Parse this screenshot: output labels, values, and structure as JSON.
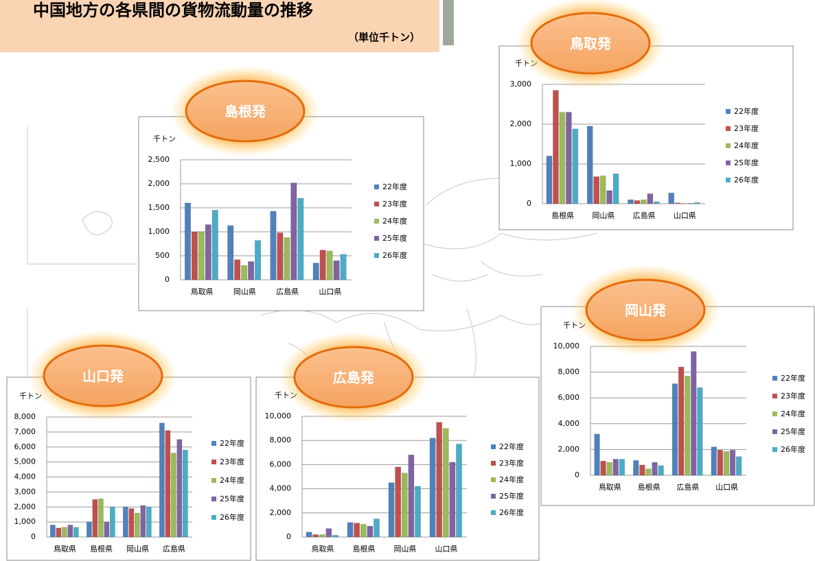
{
  "header": {
    "title": "中国地方の各県間の貨物流動量の推移",
    "unit": "（単位千トン）"
  },
  "chart_data": [
    {
      "type": "bar",
      "title": "島根発",
      "y_label": "千トン",
      "grid": true,
      "categories": [
        "鳥取県",
        "岡山県",
        "広島県",
        "山口県"
      ],
      "ylim": [
        0,
        2500
      ],
      "yticks": [
        0,
        500,
        {
          "value": 1000,
          "label": "1,000"
        },
        {
          "value": 1500,
          "label": "1,500"
        },
        {
          "value": 2000,
          "label": "2,000"
        },
        {
          "value": 2500,
          "label": "2,500"
        }
      ],
      "series": [
        {
          "name": "22年度",
          "color": "#4f81bd",
          "values": [
            1600,
            1130,
            1430,
            350
          ]
        },
        {
          "name": "23年度",
          "color": "#c0504d",
          "values": [
            1000,
            420,
            980,
            620
          ]
        },
        {
          "name": "24年度",
          "color": "#9bbb59",
          "values": [
            1000,
            300,
            880,
            600
          ]
        },
        {
          "name": "25年度",
          "color": "#8064a2",
          "values": [
            1150,
            380,
            2020,
            400
          ]
        },
        {
          "name": "26年度",
          "color": "#4bacc6",
          "values": [
            1450,
            820,
            1700,
            530
          ]
        }
      ]
    },
    {
      "type": "bar",
      "title": "鳥取発",
      "y_label": "千トン",
      "grid": true,
      "categories": [
        "島根県",
        "岡山県",
        "広島県",
        "山口県"
      ],
      "ylim": [
        0,
        3000
      ],
      "yticks": [
        0,
        {
          "value": 1000,
          "label": "1,000"
        },
        {
          "value": 2000,
          "label": "2,000"
        },
        {
          "value": 3000,
          "label": "3,000"
        }
      ],
      "series": [
        {
          "name": "22年度",
          "color": "#4f81bd",
          "values": [
            1200,
            1950,
            100,
            270
          ]
        },
        {
          "name": "23年度",
          "color": "#c0504d",
          "values": [
            2850,
            680,
            80,
            20
          ]
        },
        {
          "name": "24年度",
          "color": "#9bbb59",
          "values": [
            2300,
            700,
            100,
            10
          ]
        },
        {
          "name": "25年度",
          "color": "#8064a2",
          "values": [
            2300,
            330,
            250,
            10
          ]
        },
        {
          "name": "26年度",
          "color": "#4bacc6",
          "values": [
            1880,
            750,
            50,
            30
          ]
        }
      ]
    },
    {
      "type": "bar",
      "title": "岡山発",
      "y_label": "千トン",
      "grid": true,
      "categories": [
        "鳥取県",
        "島根県",
        "広島県",
        "山口県"
      ],
      "ylim": [
        0,
        10000
      ],
      "yticks": [
        0,
        {
          "value": 2000,
          "label": "2,000"
        },
        {
          "value": 4000,
          "label": "4,000"
        },
        {
          "value": 6000,
          "label": "6,000"
        },
        {
          "value": 8000,
          "label": "8,000"
        },
        {
          "value": 10000,
          "label": "10,000"
        }
      ],
      "series": [
        {
          "name": "22年度",
          "color": "#4f81bd",
          "values": [
            3200,
            1150,
            7100,
            2200
          ]
        },
        {
          "name": "23年度",
          "color": "#c0504d",
          "values": [
            1100,
            800,
            8400,
            1950
          ]
        },
        {
          "name": "24年度",
          "color": "#9bbb59",
          "values": [
            1000,
            500,
            7700,
            1850
          ]
        },
        {
          "name": "25年度",
          "color": "#8064a2",
          "values": [
            1250,
            1000,
            9600,
            1950
          ]
        },
        {
          "name": "26年度",
          "color": "#4bacc6",
          "values": [
            1250,
            750,
            6800,
            1450
          ]
        }
      ]
    },
    {
      "type": "bar",
      "title": "山口発",
      "y_label": "千トン",
      "grid": true,
      "categories": [
        "鳥取県",
        "島根県",
        "岡山県",
        "広島県"
      ],
      "ylim": [
        0,
        8000
      ],
      "yticks": [
        0,
        {
          "value": 1000,
          "label": "1,000"
        },
        {
          "value": 2000,
          "label": "2,000"
        },
        {
          "value": 3000,
          "label": "3,000"
        },
        {
          "value": 4000,
          "label": "4,000"
        },
        {
          "value": 5000,
          "label": "5,000"
        },
        {
          "value": 6000,
          "label": "6,000"
        },
        {
          "value": 7000,
          "label": "7,000"
        },
        {
          "value": 8000,
          "label": "8,000"
        }
      ],
      "series": [
        {
          "name": "22年度",
          "color": "#4f81bd",
          "values": [
            800,
            1000,
            2000,
            7600
          ]
        },
        {
          "name": "23年度",
          "color": "#c0504d",
          "values": [
            600,
            2500,
            1900,
            7100
          ]
        },
        {
          "name": "24年度",
          "color": "#9bbb59",
          "values": [
            650,
            2550,
            1600,
            5600
          ]
        },
        {
          "name": "25年度",
          "color": "#8064a2",
          "values": [
            800,
            1000,
            2100,
            6500
          ]
        },
        {
          "name": "26年度",
          "color": "#4bacc6",
          "values": [
            650,
            2000,
            2000,
            5800
          ]
        }
      ]
    },
    {
      "type": "bar",
      "title": "広島発",
      "y_label": "千トン",
      "grid": true,
      "categories": [
        "鳥取県",
        "島根県",
        "岡山県",
        "山口県"
      ],
      "ylim": [
        0,
        10000
      ],
      "yticks": [
        0,
        {
          "value": 2000,
          "label": "2,000"
        },
        {
          "value": 4000,
          "label": "4,000"
        },
        {
          "value": 6000,
          "label": "6,000"
        },
        {
          "value": 8000,
          "label": "8,000"
        },
        {
          "value": 10000,
          "label": "10,000"
        }
      ],
      "series": [
        {
          "name": "22年度",
          "color": "#4f81bd",
          "values": [
            400,
            1200,
            4500,
            8200
          ]
        },
        {
          "name": "23年度",
          "color": "#c0504d",
          "values": [
            200,
            1150,
            5800,
            9500
          ]
        },
        {
          "name": "24年度",
          "color": "#9bbb59",
          "values": [
            200,
            1050,
            5300,
            9000
          ]
        },
        {
          "name": "25年度",
          "color": "#8064a2",
          "values": [
            700,
            900,
            6800,
            6200
          ]
        },
        {
          "name": "26年度",
          "color": "#4bacc6",
          "values": [
            150,
            1500,
            4200,
            7700
          ]
        }
      ]
    }
  ]
}
